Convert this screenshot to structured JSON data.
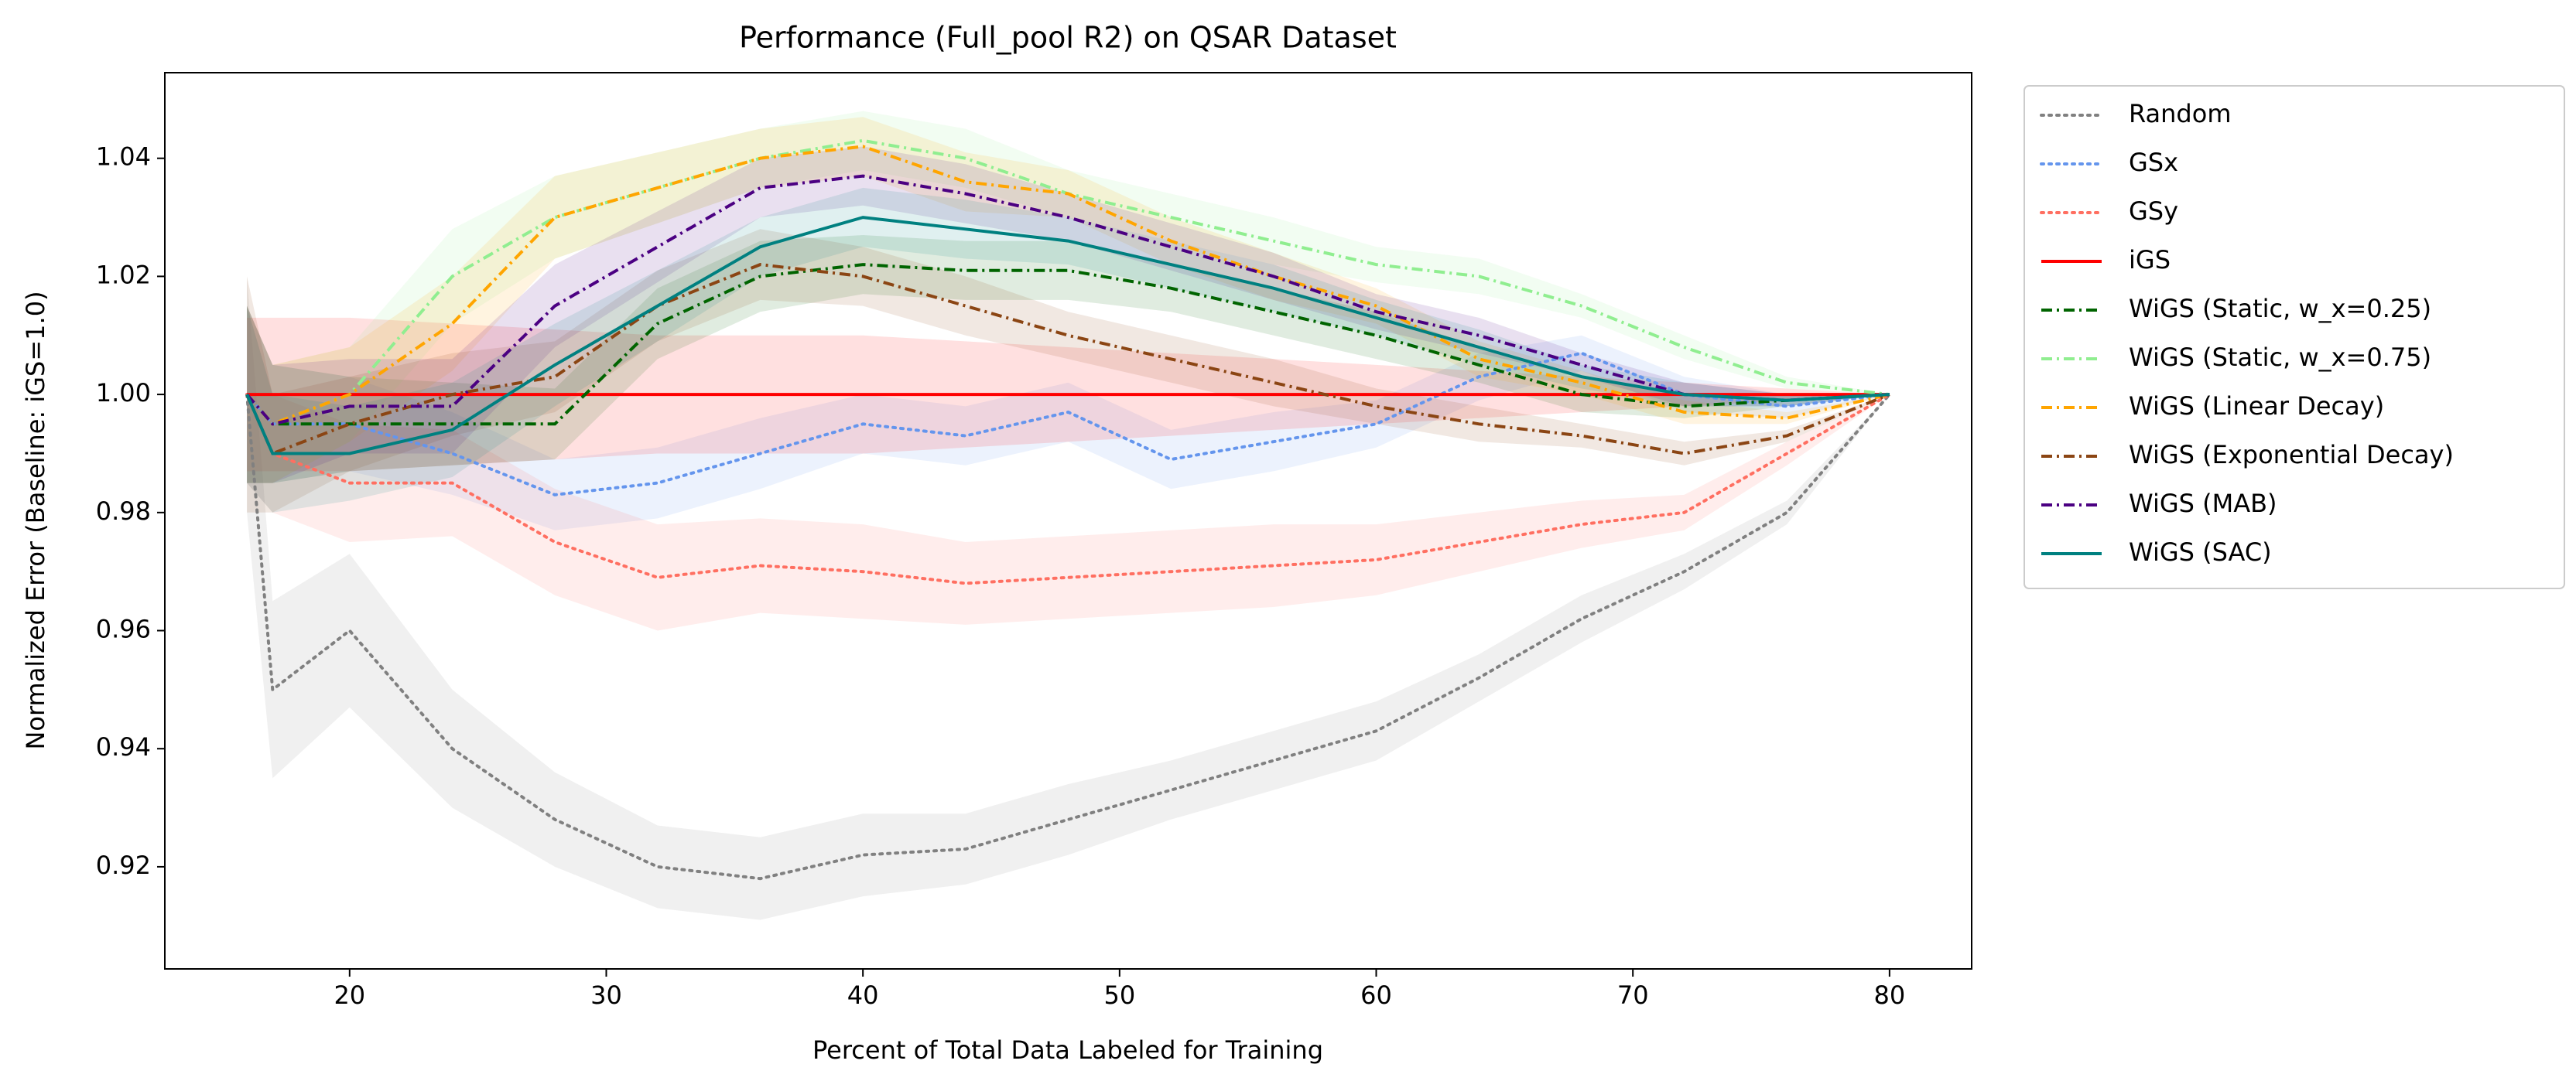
{
  "chart_data": {
    "type": "line",
    "title": "Performance (Full_pool R2) on QSAR Dataset",
    "x_label": "Percent of Total Data Labeled for Training",
    "y_label": "Normalized Error (Baseline: iGS=1.0)",
    "x": [
      16,
      17,
      20,
      24,
      28,
      32,
      36,
      40,
      44,
      48,
      52,
      56,
      60,
      64,
      68,
      72,
      76,
      80
    ],
    "xlim": [
      12.8,
      83.2
    ],
    "xticks": [
      20,
      30,
      40,
      50,
      60,
      70,
      80
    ],
    "ylim": [
      0.9027,
      1.0545
    ],
    "yticks": [
      0.92,
      0.94,
      0.96,
      0.98,
      {
        "value": 1,
        "label": "1.00"
      },
      1.02,
      1.04
    ],
    "legend": "outside-right",
    "series": [
      {
        "name": "Random",
        "color": "#808080",
        "linestyle": "dotted",
        "values": [
          1.0,
          0.95,
          0.96,
          0.94,
          0.928,
          0.92,
          0.918,
          0.922,
          0.923,
          0.928,
          0.933,
          0.938,
          0.943,
          0.952,
          0.962,
          0.97,
          0.98,
          1.0
        ],
        "std": [
          0.02,
          0.015,
          0.013,
          0.01,
          0.008,
          0.007,
          0.007,
          0.007,
          0.006,
          0.006,
          0.005,
          0.005,
          0.005,
          0.004,
          0.004,
          0.003,
          0.002,
          0.0
        ]
      },
      {
        "name": "GSx",
        "color": "#6495ed",
        "linestyle": "dotted",
        "values": [
          1.0,
          0.995,
          0.995,
          0.99,
          0.983,
          0.985,
          0.99,
          0.995,
          0.993,
          0.997,
          0.989,
          0.992,
          0.995,
          1.003,
          1.007,
          1.0,
          0.998,
          1.0
        ],
        "std": [
          0.015,
          0.01,
          0.008,
          0.007,
          0.006,
          0.006,
          0.006,
          0.005,
          0.005,
          0.005,
          0.005,
          0.005,
          0.004,
          0.004,
          0.003,
          0.003,
          0.002,
          0.0
        ]
      },
      {
        "name": "GSy",
        "color": "#ff6f61",
        "linestyle": "dotted",
        "values": [
          1.0,
          0.99,
          0.985,
          0.985,
          0.975,
          0.969,
          0.971,
          0.97,
          0.968,
          0.969,
          0.97,
          0.971,
          0.972,
          0.975,
          0.978,
          0.98,
          0.99,
          1.0
        ],
        "std": [
          0.015,
          0.01,
          0.01,
          0.009,
          0.009,
          0.009,
          0.008,
          0.008,
          0.007,
          0.007,
          0.007,
          0.007,
          0.006,
          0.005,
          0.004,
          0.003,
          0.002,
          0.0
        ]
      },
      {
        "name": "iGS",
        "color": "#ff0000",
        "linestyle": "solid",
        "values": [
          1.0,
          1.0,
          1.0,
          1.0,
          1.0,
          1.0,
          1.0,
          1.0,
          1.0,
          1.0,
          1.0,
          1.0,
          1.0,
          1.0,
          1.0,
          1.0,
          1.0,
          1.0
        ],
        "std": [
          0.013,
          0.013,
          0.013,
          0.012,
          0.011,
          0.01,
          0.01,
          0.01,
          0.009,
          0.008,
          0.007,
          0.006,
          0.005,
          0.004,
          0.003,
          0.002,
          0.001,
          0.0
        ]
      },
      {
        "name": "WiGS (Static, w_x=0.25)",
        "color": "#006400",
        "linestyle": "dashdot",
        "values": [
          1.0,
          0.995,
          0.995,
          0.995,
          0.995,
          1.012,
          1.02,
          1.022,
          1.021,
          1.021,
          1.018,
          1.014,
          1.01,
          1.005,
          1.0,
          0.998,
          0.999,
          1.0
        ],
        "std": [
          0.015,
          0.01,
          0.008,
          0.007,
          0.006,
          0.006,
          0.006,
          0.005,
          0.005,
          0.005,
          0.004,
          0.004,
          0.004,
          0.003,
          0.003,
          0.002,
          0.001,
          0.0
        ]
      },
      {
        "name": "WiGS (Static, w_x=0.75)",
        "color": "#90ee90",
        "linestyle": "dashdot",
        "values": [
          1.0,
          0.995,
          1.0,
          1.02,
          1.03,
          1.035,
          1.04,
          1.043,
          1.04,
          1.034,
          1.03,
          1.026,
          1.022,
          1.02,
          1.015,
          1.008,
          1.002,
          1.0
        ],
        "std": [
          0.015,
          0.01,
          0.008,
          0.008,
          0.007,
          0.006,
          0.005,
          0.005,
          0.005,
          0.004,
          0.004,
          0.004,
          0.003,
          0.003,
          0.002,
          0.002,
          0.001,
          0.0
        ]
      },
      {
        "name": "WiGS (Linear Decay)",
        "color": "#ffa500",
        "linestyle": "dashdot",
        "values": [
          1.0,
          0.995,
          1.0,
          1.012,
          1.03,
          1.035,
          1.04,
          1.042,
          1.036,
          1.034,
          1.026,
          1.02,
          1.015,
          1.006,
          1.002,
          0.997,
          0.996,
          1.0
        ],
        "std": [
          0.015,
          0.01,
          0.008,
          0.008,
          0.007,
          0.006,
          0.005,
          0.005,
          0.005,
          0.004,
          0.004,
          0.004,
          0.003,
          0.003,
          0.002,
          0.002,
          0.001,
          0.0
        ]
      },
      {
        "name": "WiGS (Exponential Decay)",
        "color": "#8b4513",
        "linestyle": "dashdot",
        "values": [
          1.0,
          0.99,
          0.995,
          1.0,
          1.003,
          1.015,
          1.022,
          1.02,
          1.015,
          1.01,
          1.006,
          1.002,
          0.998,
          0.995,
          0.993,
          0.99,
          0.993,
          1.0
        ],
        "std": [
          0.02,
          0.01,
          0.008,
          0.007,
          0.006,
          0.006,
          0.006,
          0.005,
          0.005,
          0.004,
          0.004,
          0.004,
          0.003,
          0.003,
          0.002,
          0.002,
          0.001,
          0.0
        ]
      },
      {
        "name": "WiGS (MAB)",
        "color": "#4b0082",
        "linestyle": "dashdot",
        "values": [
          1.0,
          0.995,
          0.998,
          0.998,
          1.015,
          1.025,
          1.035,
          1.037,
          1.034,
          1.03,
          1.025,
          1.02,
          1.014,
          1.01,
          1.005,
          1.0,
          0.999,
          1.0
        ],
        "std": [
          0.015,
          0.01,
          0.008,
          0.008,
          0.007,
          0.006,
          0.005,
          0.005,
          0.005,
          0.004,
          0.004,
          0.004,
          0.003,
          0.003,
          0.002,
          0.002,
          0.001,
          0.0
        ]
      },
      {
        "name": "WiGS (SAC)",
        "color": "#008080",
        "linestyle": "solid",
        "values": [
          1.0,
          0.99,
          0.99,
          0.994,
          1.005,
          1.015,
          1.025,
          1.03,
          1.028,
          1.026,
          1.022,
          1.018,
          1.013,
          1.008,
          1.003,
          1.0,
          0.999,
          1.0
        ],
        "std": [
          0.015,
          0.01,
          0.008,
          0.008,
          0.007,
          0.006,
          0.005,
          0.005,
          0.005,
          0.004,
          0.004,
          0.004,
          0.003,
          0.003,
          0.002,
          0.002,
          0.001,
          0.0
        ]
      }
    ]
  }
}
